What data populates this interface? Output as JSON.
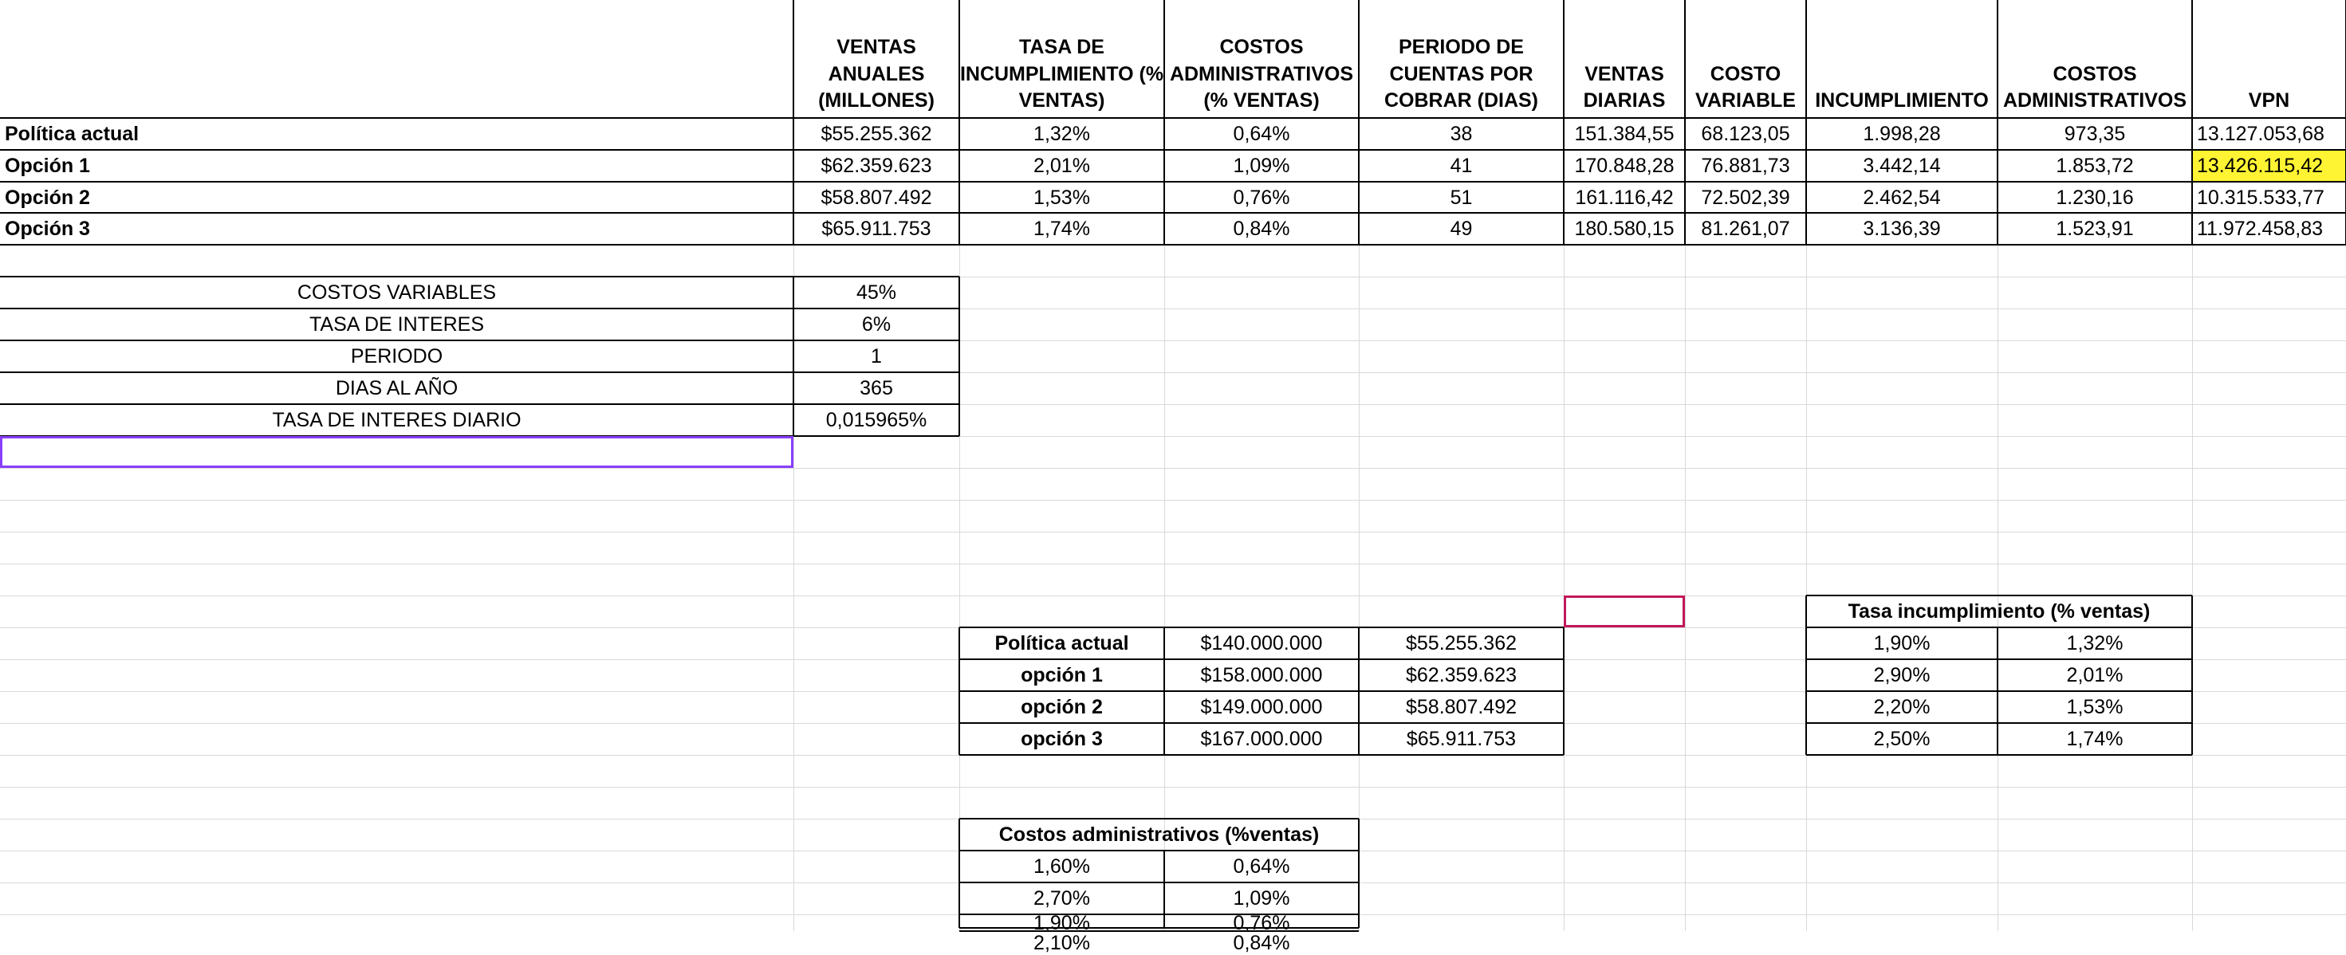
{
  "main_table": {
    "headers": [
      "VENTAS ANUALES (MILLONES)",
      "TASA DE INCUMPLIMIENTO (% VENTAS)",
      "COSTOS ADMINISTRATIVOS (% VENTAS)",
      "PERIODO DE CUENTAS POR COBRAR (DIAS)",
      "VENTAS DIARIAS",
      "COSTO VARIABLE",
      "INCUMPLIMIENTO",
      "COSTOS ADMINISTRATIVOS",
      "VPN"
    ],
    "rows": [
      {
        "label": "Política actual",
        "values": [
          "$55.255.362",
          "1,32%",
          "0,64%",
          "38",
          "151.384,55",
          "68.123,05",
          "1.998,28",
          "973,35",
          "13.127.053,68"
        ]
      },
      {
        "label": "Opción 1",
        "values": [
          "$62.359.623",
          "2,01%",
          "1,09%",
          "41",
          "170.848,28",
          "76.881,73",
          "3.442,14",
          "1.853,72",
          "13.426.115,42"
        ]
      },
      {
        "label": "Opción 2",
        "values": [
          "$58.807.492",
          "1,53%",
          "0,76%",
          "51",
          "161.116,42",
          "72.502,39",
          "2.462,54",
          "1.230,16",
          "10.315.533,77"
        ]
      },
      {
        "label": "Opción 3",
        "values": [
          "$65.911.753",
          "1,74%",
          "0,84%",
          "49",
          "180.580,15",
          "81.261,07",
          "3.136,39",
          "1.523,91",
          "11.972.458,83"
        ]
      }
    ]
  },
  "params": [
    {
      "label": "COSTOS VARIABLES",
      "value": "45%"
    },
    {
      "label": "TASA DE INTERES",
      "value": "6%"
    },
    {
      "label": "PERIODO",
      "value": "1"
    },
    {
      "label": "DIAS AL AÑO",
      "value": "365"
    },
    {
      "label": "TASA DE INTERES DIARIO",
      "value": "0,015965%"
    }
  ],
  "sales_table": [
    {
      "label": "Política actual",
      "gross": "$140.000.000",
      "net": "$55.255.362"
    },
    {
      "label": "opción 1",
      "gross": "$158.000.000",
      "net": "$62.359.623"
    },
    {
      "label": "opción 2",
      "gross": "$149.000.000",
      "net": "$58.807.492"
    },
    {
      "label": "opción 3",
      "gross": "$167.000.000",
      "net": "$65.911.753"
    }
  ],
  "default_table": {
    "title": "Tasa incumplimiento (% ventas)",
    "rows": [
      [
        "1,90%",
        "1,32%"
      ],
      [
        "2,90%",
        "2,01%"
      ],
      [
        "2,20%",
        "1,53%"
      ],
      [
        "2,50%",
        "1,74%"
      ]
    ]
  },
  "admin_table": {
    "title": "Costos administrativos (%ventas)",
    "rows": [
      [
        "1,60%",
        "0,64%"
      ],
      [
        "2,70%",
        "1,09%"
      ],
      [
        "1,90%",
        "0,76%"
      ],
      [
        "2,10%",
        "0,84%"
      ]
    ]
  },
  "colors": {
    "highlight": "#fff433",
    "selection_purple": "#8a3ffc",
    "selection_magenta": "#c2185b",
    "gridline": "#d9d9d9"
  }
}
